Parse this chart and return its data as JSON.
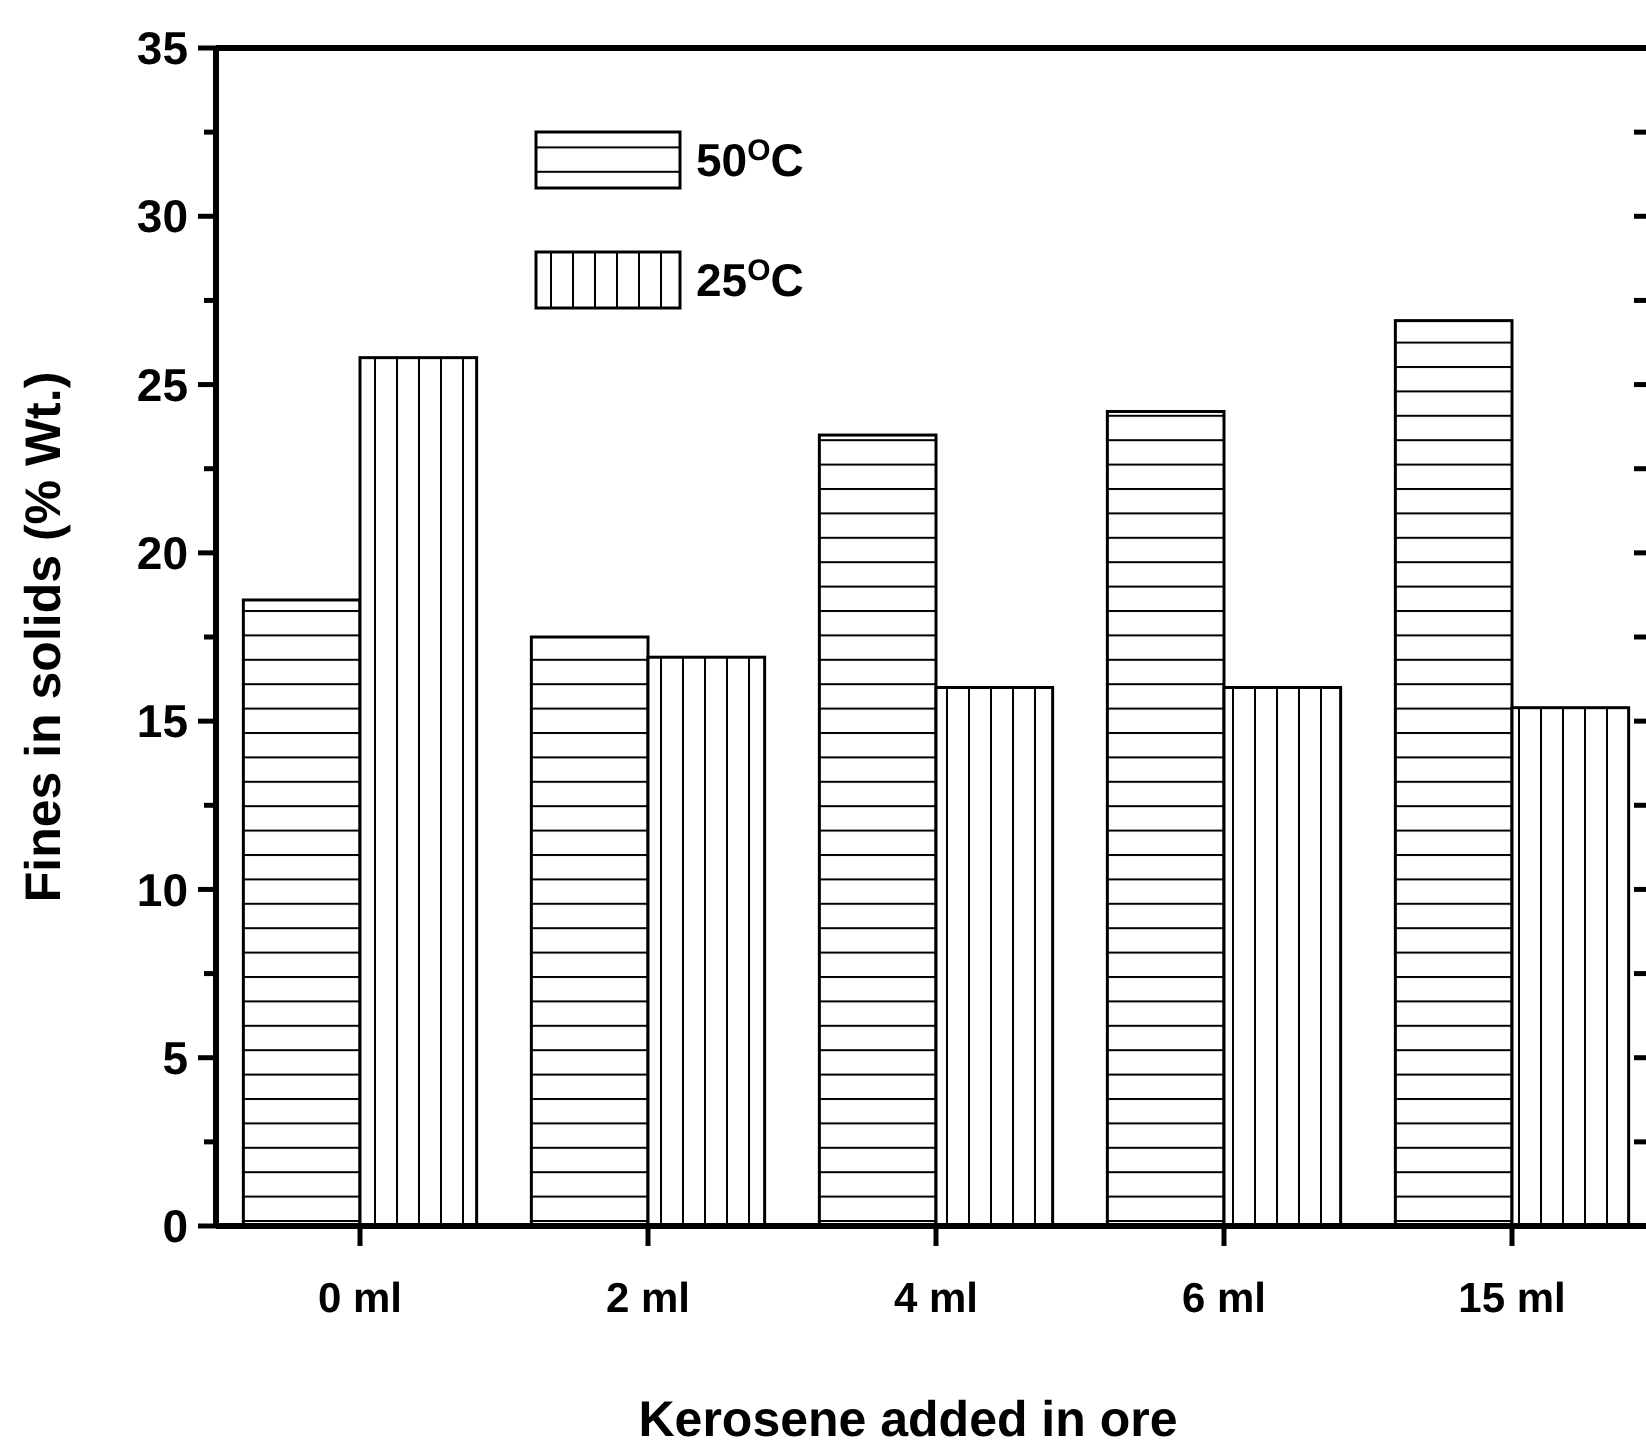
{
  "chart_data": {
    "type": "bar",
    "xlabel": "Kerosene added in ore",
    "ylabel": "Fines in solids (% Wt.)",
    "categories": [
      "0 ml",
      "2 ml",
      "4 ml",
      "6 ml",
      "15 ml"
    ],
    "series": [
      {
        "name": "50$^{O}$C",
        "color": "#000000",
        "values": [
          18.6,
          17.5,
          23.5,
          24.2,
          26.9
        ]
      },
      {
        "name": "25$^{O}$C",
        "color": "#000000",
        "values": [
          25.8,
          16.9,
          16.0,
          16.0,
          15.4
        ]
      }
    ],
    "ylim": [
      0,
      35
    ],
    "yticks": [
      0,
      {
        "value": 2.5,
        "label": null
      },
      5,
      {
        "value": 7.5,
        "label": null
      },
      10,
      {
        "value": 12.5,
        "label": null
      },
      15,
      {
        "value": 17.5,
        "label": null
      },
      20,
      {
        "value": 22.5,
        "label": null
      },
      25,
      {
        "value": 27.5,
        "label": null
      },
      30,
      {
        "value": 32.5,
        "label": null
      },
      35
    ],
    "legend": "top left",
    "grid": false
  }
}
